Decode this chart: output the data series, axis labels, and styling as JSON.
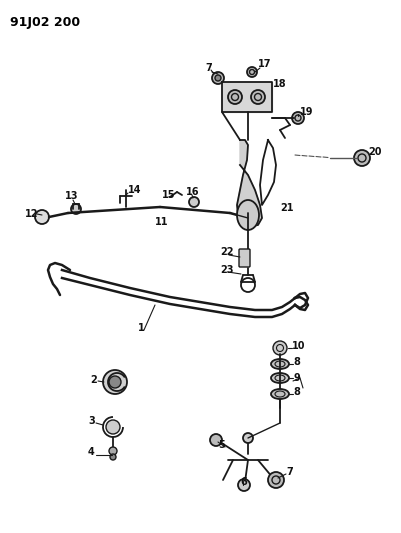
{
  "title": "91J02 200",
  "bg_color": "#ffffff",
  "fig_width": 4.01,
  "fig_height": 5.33,
  "dpi": 100
}
